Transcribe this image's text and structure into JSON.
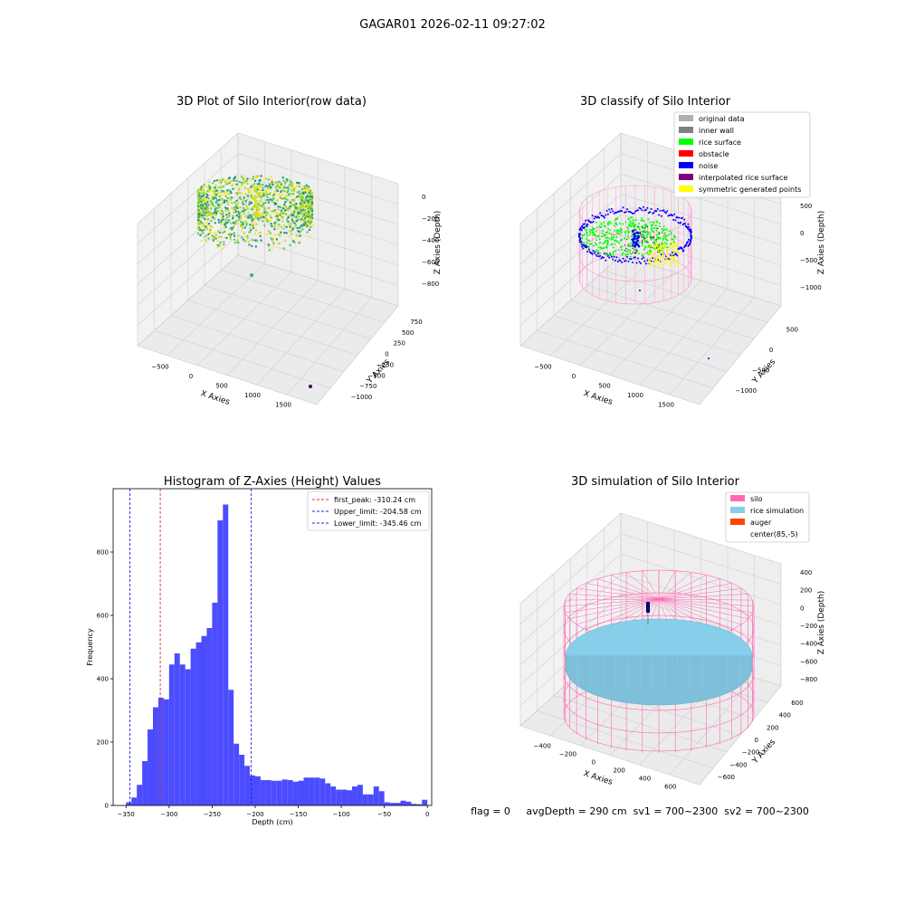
{
  "suptitle": "GAGAR01 2026-02-11 09:27:02",
  "status_line": "flag = 0     avgDepth = 290 cm  sv1 = 700~2300  sv2 = 700~2300",
  "colors": {
    "pane_fill": "#f2f2f2",
    "grid": "#d0d0d0",
    "hist_bar": "#4c4cff",
    "peak_line": "#e03030",
    "limit_line": "#2020e0",
    "silo": "#ff69b4",
    "rice_sim": "#87ceeb",
    "auger": "#ff4500",
    "original": "#b0b0b0",
    "inner_wall": "#808080",
    "rice_surface": "#00ff00",
    "obstacle": "#ff0000",
    "noise": "#0000ff",
    "interp": "#800080",
    "symmetric": "#ffff00"
  },
  "chart_data": [
    {
      "type": "scatter",
      "subtype": "3d",
      "title": "3D Plot of Silo Interior(row data)",
      "xlabel": "X Axies",
      "ylabel": "Y Axies",
      "zlabel": "Z Axies (Depth)",
      "x_ticks": [
        "−500",
        "0",
        "500",
        "1000",
        "1500"
      ],
      "y_ticks": [
        "−1000",
        "−750",
        "−500",
        "−250",
        "0",
        "250",
        "500",
        "750"
      ],
      "z_ticks": [
        "0",
        "−200",
        "−400",
        "−600",
        "−800"
      ],
      "xlim": [
        -600,
        1700
      ],
      "ylim": [
        -1100,
        800
      ],
      "zlim": [
        -900,
        50
      ],
      "colormap": "viridis"
    },
    {
      "type": "scatter",
      "subtype": "3d",
      "title": "3D classify of Silo Interior",
      "xlabel": "X Axies",
      "ylabel": "Y Axies",
      "zlabel": "Z Axies (Depth)",
      "x_ticks": [
        "−500",
        "0",
        "500",
        "1000",
        "1500"
      ],
      "y_ticks": [
        "−1000",
        "−500",
        "0",
        "500"
      ],
      "z_ticks": [
        "500",
        "0",
        "−500",
        "−1000"
      ],
      "xlim": [
        -600,
        1700
      ],
      "ylim": [
        -1200,
        700
      ],
      "zlim": [
        -1200,
        600
      ],
      "legend_position": "upper right",
      "legend": [
        {
          "label": "original data",
          "color": "#b0b0b0"
        },
        {
          "label": "inner wall",
          "color": "#808080"
        },
        {
          "label": "rice surface",
          "color": "#00ff00"
        },
        {
          "label": "obstacle",
          "color": "#ff0000"
        },
        {
          "label": "noise",
          "color": "#0000ff"
        },
        {
          "label": "interpolated rice surface",
          "color": "#800080"
        },
        {
          "label": "symmetric generated points",
          "color": "#ffff00"
        }
      ]
    },
    {
      "type": "bar",
      "subtype": "histogram",
      "title": "Histogram of Z-Axies (Height) Values",
      "xlabel": "Depth (cm)",
      "ylabel": "Frequency",
      "xlim": [
        -365,
        5
      ],
      "ylim": [
        0,
        1000
      ],
      "x_ticks": [
        -350,
        -300,
        -250,
        -200,
        -150,
        -100,
        -50,
        0
      ],
      "y_ticks": [
        0,
        200,
        400,
        600,
        800
      ],
      "x_tick_labels": [
        "−350",
        "−300",
        "−250",
        "−200",
        "−150",
        "−100",
        "−50",
        "0"
      ],
      "y_tick_labels": [
        "0",
        "200",
        "400",
        "600",
        "800"
      ],
      "bin_width": 6.25,
      "bins": [
        {
          "x": -350,
          "y": 10
        },
        {
          "x": -343.75,
          "y": 25
        },
        {
          "x": -337.5,
          "y": 65
        },
        {
          "x": -331.25,
          "y": 140
        },
        {
          "x": -325,
          "y": 240
        },
        {
          "x": -318.75,
          "y": 310
        },
        {
          "x": -312.5,
          "y": 340
        },
        {
          "x": -306.25,
          "y": 335
        },
        {
          "x": -300,
          "y": 445
        },
        {
          "x": -293.75,
          "y": 480
        },
        {
          "x": -287.5,
          "y": 445
        },
        {
          "x": -281.25,
          "y": 430
        },
        {
          "x": -275,
          "y": 495
        },
        {
          "x": -268.75,
          "y": 515
        },
        {
          "x": -262.5,
          "y": 535
        },
        {
          "x": -256.25,
          "y": 560
        },
        {
          "x": -250,
          "y": 640
        },
        {
          "x": -243.75,
          "y": 900
        },
        {
          "x": -237.5,
          "y": 950
        },
        {
          "x": -231.25,
          "y": 365
        },
        {
          "x": -225,
          "y": 195
        },
        {
          "x": -218.75,
          "y": 160
        },
        {
          "x": -212.5,
          "y": 125
        },
        {
          "x": -206.25,
          "y": 95
        },
        {
          "x": -200,
          "y": 92
        },
        {
          "x": -193.75,
          "y": 80
        },
        {
          "x": -187.5,
          "y": 80
        },
        {
          "x": -181.25,
          "y": 78
        },
        {
          "x": -175,
          "y": 78
        },
        {
          "x": -168.75,
          "y": 82
        },
        {
          "x": -162.5,
          "y": 80
        },
        {
          "x": -156.25,
          "y": 75
        },
        {
          "x": -150,
          "y": 78
        },
        {
          "x": -143.75,
          "y": 88
        },
        {
          "x": -137.5,
          "y": 88
        },
        {
          "x": -131.25,
          "y": 88
        },
        {
          "x": -125,
          "y": 85
        },
        {
          "x": -118.75,
          "y": 70
        },
        {
          "x": -112.5,
          "y": 60
        },
        {
          "x": -106.25,
          "y": 50
        },
        {
          "x": -100,
          "y": 50
        },
        {
          "x": -93.75,
          "y": 48
        },
        {
          "x": -87.5,
          "y": 60
        },
        {
          "x": -81.25,
          "y": 65
        },
        {
          "x": -75,
          "y": 35
        },
        {
          "x": -68.75,
          "y": 35
        },
        {
          "x": -62.5,
          "y": 60
        },
        {
          "x": -56.25,
          "y": 45
        },
        {
          "x": -50,
          "y": 10
        },
        {
          "x": -43.75,
          "y": 8
        },
        {
          "x": -37.5,
          "y": 8
        },
        {
          "x": -31.25,
          "y": 15
        },
        {
          "x": -25,
          "y": 12
        },
        {
          "x": -18.75,
          "y": 5
        },
        {
          "x": -12.5,
          "y": 4
        },
        {
          "x": -6.25,
          "y": 18
        },
        {
          "x": 0,
          "y": 0
        }
      ],
      "vlines": [
        {
          "x": -310.24,
          "label": "first_peak: -310.24 cm",
          "color": "#e03030"
        },
        {
          "x": -204.58,
          "label": "Upper_limit: -204.58 cm",
          "color": "#2020e0"
        },
        {
          "x": -345.46,
          "label": "Lower_limit: -345.46 cm",
          "color": "#2020e0"
        }
      ],
      "legend_position": "upper right"
    },
    {
      "type": "area",
      "subtype": "3d-surface",
      "title": "3D simulation of Silo Interior",
      "xlabel": "X Axies",
      "ylabel": "Y Axies",
      "zlabel": "Z Axies (Depth)",
      "x_ticks": [
        "−400",
        "−200",
        "0",
        "200",
        "400",
        "600"
      ],
      "y_ticks": [
        "−600",
        "−400",
        "−200",
        "0",
        "200",
        "400",
        "600"
      ],
      "z_ticks": [
        "400",
        "200",
        "0",
        "−200",
        "−400",
        "−600",
        "−800"
      ],
      "xlim": [
        -500,
        700
      ],
      "ylim": [
        -650,
        650
      ],
      "zlim": [
        -900,
        450
      ],
      "legend_position": "upper right",
      "legend": [
        {
          "label": "silo",
          "color": "#ff69b4"
        },
        {
          "label": "rice simulation",
          "color": "#87ceeb"
        },
        {
          "label": "auger",
          "color": "#ff4500"
        },
        {
          "label": "center(85,-5)",
          "color": "#ffffff"
        }
      ]
    }
  ]
}
